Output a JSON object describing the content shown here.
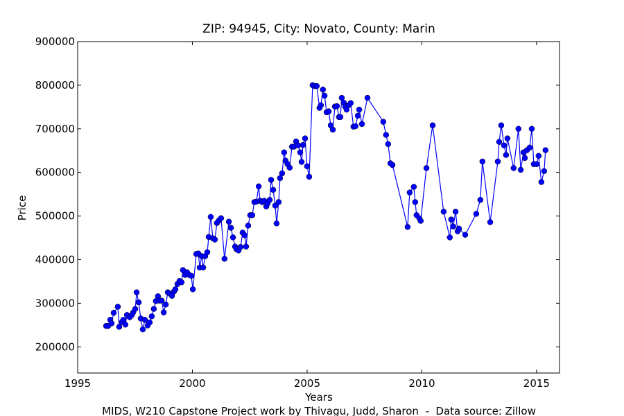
{
  "chart_data": {
    "type": "line",
    "title": "ZIP: 94945, City: Novato, County: Marin",
    "x_label": "Years",
    "y_label": "Price",
    "footer": "MIDS, W210 Capstone Project work by Thivagu, Judd, Sharon  -  Data source: Zillow",
    "color": "#0000ff",
    "markers": true,
    "grid": false,
    "xlim": [
      1995,
      2016
    ],
    "xticks": [
      1995,
      2000,
      2005,
      2010,
      2015
    ],
    "ylim": [
      140000,
      900000
    ],
    "yticks": [
      200000,
      300000,
      400000,
      500000,
      600000,
      700000,
      800000,
      900000
    ],
    "x": [
      1996.24,
      1996.33,
      1996.42,
      1996.48,
      1996.57,
      1996.75,
      1996.81,
      1996.93,
      1996.99,
      1997.08,
      1997.15,
      1997.27,
      1997.36,
      1997.42,
      1997.51,
      1997.57,
      1997.66,
      1997.75,
      1997.84,
      1997.93,
      1998.05,
      1998.14,
      1998.23,
      1998.32,
      1998.41,
      1998.5,
      1998.56,
      1998.66,
      1998.75,
      1998.84,
      1998.93,
      1999.02,
      1999.11,
      1999.2,
      1999.26,
      1999.35,
      1999.44,
      1999.53,
      1999.59,
      1999.68,
      1999.77,
      1999.86,
      1999.95,
      2000.02,
      2000.17,
      2000.26,
      2000.32,
      2000.41,
      2000.47,
      2000.56,
      2000.65,
      2000.71,
      2000.8,
      2000.89,
      2000.98,
      2001.07,
      2001.16,
      2001.25,
      2001.4,
      2001.59,
      2001.68,
      2001.77,
      2001.86,
      2001.92,
      2002.01,
      2002.1,
      2002.19,
      2002.28,
      2002.34,
      2002.43,
      2002.52,
      2002.61,
      2002.7,
      2002.79,
      2002.89,
      2002.95,
      2003.04,
      2003.13,
      2003.22,
      2003.28,
      2003.37,
      2003.43,
      2003.52,
      2003.61,
      2003.67,
      2003.76,
      2003.82,
      2003.91,
      2004.0,
      2004.06,
      2004.15,
      2004.24,
      2004.34,
      2004.43,
      2004.52,
      2004.61,
      2004.7,
      2004.76,
      2004.82,
      2004.91,
      2005.0,
      2005.09,
      2005.24,
      2005.33,
      2005.42,
      2005.54,
      2005.6,
      2005.69,
      2005.76,
      2005.85,
      2005.94,
      2006.03,
      2006.12,
      2006.21,
      2006.3,
      2006.39,
      2006.45,
      2006.51,
      2006.6,
      2006.66,
      2006.72,
      2006.81,
      2006.9,
      2007.02,
      2007.11,
      2007.21,
      2007.27,
      2007.39,
      2007.63,
      2008.32,
      2008.44,
      2008.53,
      2008.63,
      2008.72,
      2009.38,
      2009.47,
      2009.65,
      2009.71,
      2009.77,
      2009.89,
      2009.95,
      2010.2,
      2010.47,
      2010.95,
      2011.22,
      2011.28,
      2011.37,
      2011.47,
      2011.56,
      2011.62,
      2011.89,
      2012.37,
      2012.55,
      2012.64,
      2012.98,
      2013.31,
      2013.37,
      2013.46,
      2013.58,
      2013.67,
      2013.73,
      2014.0,
      2014.21,
      2014.31,
      2014.43,
      2014.49,
      2014.58,
      2014.7,
      2014.79,
      2014.88,
      2015.0,
      2015.09,
      2015.21,
      2015.33,
      2015.39
    ],
    "values": [
      248000,
      248000,
      262000,
      254000,
      278000,
      292000,
      246000,
      257000,
      262000,
      251000,
      273000,
      268000,
      273000,
      279000,
      287000,
      325000,
      302000,
      265000,
      240000,
      262000,
      249000,
      256000,
      270000,
      287000,
      305000,
      316000,
      306000,
      306000,
      279000,
      297000,
      325000,
      322000,
      317000,
      327000,
      332000,
      344000,
      351000,
      348000,
      376000,
      365000,
      371000,
      365000,
      363000,
      332000,
      413000,
      414000,
      382000,
      408000,
      382000,
      408000,
      417000,
      452000,
      498000,
      449000,
      446000,
      484000,
      490000,
      495000,
      402000,
      487000,
      473000,
      451000,
      430000,
      424000,
      421000,
      429000,
      462000,
      456000,
      430000,
      478000,
      502000,
      502000,
      532000,
      533000,
      568000,
      535000,
      532000,
      535000,
      522000,
      529000,
      537000,
      583000,
      560000,
      524000,
      483000,
      532000,
      587000,
      598000,
      646000,
      627000,
      619000,
      611000,
      659000,
      659000,
      671000,
      662000,
      646000,
      624000,
      663000,
      678000,
      614000,
      590000,
      800000,
      798000,
      798000,
      748000,
      754000,
      790000,
      776000,
      738000,
      740000,
      708000,
      698000,
      751000,
      752000,
      727000,
      727000,
      771000,
      760000,
      751000,
      744000,
      754000,
      759000,
      705000,
      706000,
      730000,
      744000,
      711000,
      771000,
      716000,
      686000,
      665000,
      621000,
      617000,
      475000,
      554000,
      567000,
      532000,
      502000,
      495000,
      489000,
      610000,
      708000,
      510000,
      451000,
      492000,
      476000,
      510000,
      465000,
      471000,
      457000,
      505000,
      537000,
      625000,
      486000,
      625000,
      670000,
      708000,
      662000,
      640000,
      678000,
      610000,
      700000,
      606000,
      646000,
      633000,
      651000,
      657000,
      700000,
      619000,
      619000,
      638000,
      578000,
      603000,
      651000
    ]
  }
}
